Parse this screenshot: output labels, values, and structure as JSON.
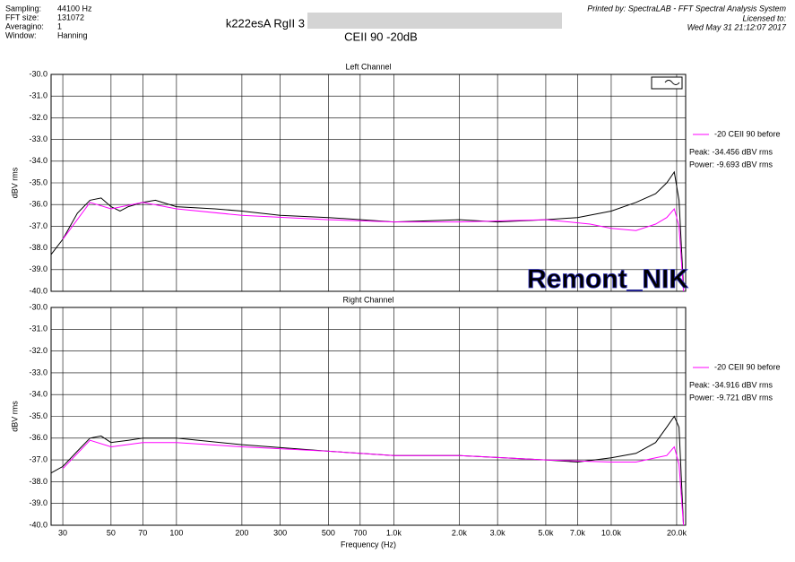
{
  "header": {
    "info": [
      [
        "Sampling:",
        "44100 Hz"
      ],
      [
        "FFT size:",
        "131072"
      ],
      [
        "Averagino:",
        "1"
      ],
      [
        "Window:",
        "Hanning"
      ]
    ],
    "title": "k222esA RgII 3",
    "subtitle": "CEII 90  -20dB",
    "printed_by": "Printed by: SpectraLAB - FFT Spectral Analysis System",
    "licensed_to": "Licensed to:",
    "date": "Wed May 31 21:12:07 2017",
    "watermark": "Remont_NIK"
  },
  "chart_data": [
    {
      "type": "line",
      "title": "Left Channel",
      "ylabel": "dBV rms",
      "xscale": "log",
      "grid": true,
      "legend": "right",
      "xlim": [
        26.5,
        22000
      ],
      "ylim": [
        -40,
        -30
      ],
      "yticks": [
        {
          "value": -30,
          "label": "-30.0"
        },
        {
          "value": -31,
          "label": "-31.0"
        },
        {
          "value": -32,
          "label": "-32.0"
        },
        {
          "value": -33,
          "label": "-33.0"
        },
        {
          "value": -34,
          "label": "-34.0"
        },
        {
          "value": -35,
          "label": "-35.0"
        },
        {
          "value": -36,
          "label": "-36.0"
        },
        {
          "value": -37,
          "label": "-37.0"
        },
        {
          "value": -38,
          "label": "-38.0"
        },
        {
          "value": -39,
          "label": "-39.0"
        },
        {
          "value": -40,
          "label": "-40.0"
        }
      ],
      "annotations": [
        "Peak: -34.456 dBV rms",
        "Power: -9.693 dBV rms"
      ],
      "series": [
        {
          "color": "#000000",
          "x": [
            26.5,
            30,
            35,
            40,
            45,
            50,
            55,
            60,
            70,
            80,
            100,
            150,
            200,
            300,
            500,
            1000,
            2000,
            3000,
            5000,
            7000,
            10000,
            13000,
            16000,
            18000,
            19500,
            20500,
            21500
          ],
          "values": [
            -38.3,
            -37.6,
            -36.4,
            -35.8,
            -35.7,
            -36.1,
            -36.3,
            -36.1,
            -35.9,
            -35.8,
            -36.1,
            -36.2,
            -36.3,
            -36.5,
            -36.6,
            -36.8,
            -36.7,
            -36.8,
            -36.7,
            -36.6,
            -36.3,
            -35.9,
            -35.5,
            -35.0,
            -34.5,
            -35.8,
            -39.8
          ]
        },
        {
          "name": "-20 CEII 90 before",
          "color": "#ff00ff",
          "x": [
            30,
            40,
            50,
            70,
            100,
            200,
            500,
            1000,
            2000,
            5000,
            8000,
            10000,
            13000,
            16000,
            18000,
            19500,
            20500,
            21500
          ],
          "values": [
            -37.6,
            -35.9,
            -36.2,
            -35.9,
            -36.2,
            -36.5,
            -36.7,
            -36.8,
            -36.8,
            -36.7,
            -36.9,
            -37.1,
            -37.2,
            -36.9,
            -36.6,
            -36.2,
            -37.0,
            -40.0
          ]
        }
      ]
    },
    {
      "type": "line",
      "title": "Right Channel",
      "ylabel": "dBV rms",
      "xlabel": "Frequency (Hz)",
      "xscale": "log",
      "grid": true,
      "legend": "right",
      "xlim": [
        26.5,
        22000
      ],
      "ylim": [
        -40,
        -30
      ],
      "xticks": [
        30,
        50,
        70,
        100,
        200,
        300,
        500,
        700,
        {
          "value": 1000,
          "label": "1.0k"
        },
        {
          "value": 2000,
          "label": "2.0k"
        },
        {
          "value": 3000,
          "label": "3.0k"
        },
        {
          "value": 5000,
          "label": "5.0k"
        },
        {
          "value": 7000,
          "label": "7.0k"
        },
        {
          "value": 10000,
          "label": "10.0k"
        },
        {
          "value": 20000,
          "label": "20.0k"
        }
      ],
      "yticks": [
        {
          "value": -30,
          "label": "-30.0"
        },
        {
          "value": -31,
          "label": "-31.0"
        },
        {
          "value": -32,
          "label": "-32.0"
        },
        {
          "value": -33,
          "label": "-33.0"
        },
        {
          "value": -34,
          "label": "-34.0"
        },
        {
          "value": -35,
          "label": "-35.0"
        },
        {
          "value": -36,
          "label": "-36.0"
        },
        {
          "value": -37,
          "label": "-37.0"
        },
        {
          "value": -38,
          "label": "-38.0"
        },
        {
          "value": -39,
          "label": "-39.0"
        },
        {
          "value": -40,
          "label": "-40.0"
        }
      ],
      "annotations": [
        "Peak: -34.916 dBV rms",
        "Power: -9.721 dBV rms"
      ],
      "series": [
        {
          "color": "#000000",
          "x": [
            26.5,
            30,
            35,
            40,
            45,
            50,
            60,
            70,
            100,
            200,
            500,
            1000,
            2000,
            5000,
            7000,
            10000,
            13000,
            16000,
            18000,
            19500,
            20500,
            21500
          ],
          "values": [
            -37.6,
            -37.3,
            -36.6,
            -36.0,
            -35.9,
            -36.2,
            -36.1,
            -36.0,
            -36.0,
            -36.3,
            -36.6,
            -36.8,
            -36.8,
            -37.0,
            -37.1,
            -36.9,
            -36.7,
            -36.2,
            -35.5,
            -35.0,
            -35.5,
            -40.0
          ]
        },
        {
          "name": "-20 CEII 90 before",
          "color": "#ff00ff",
          "x": [
            30,
            40,
            50,
            70,
            100,
            200,
            500,
            1000,
            2000,
            5000,
            10000,
            13000,
            16000,
            18000,
            19500,
            20500,
            21500
          ],
          "values": [
            -37.4,
            -36.1,
            -36.4,
            -36.2,
            -36.2,
            -36.4,
            -36.6,
            -36.8,
            -36.8,
            -37.0,
            -37.1,
            -37.1,
            -36.9,
            -36.8,
            -36.4,
            -37.2,
            -40.0
          ]
        }
      ]
    }
  ]
}
